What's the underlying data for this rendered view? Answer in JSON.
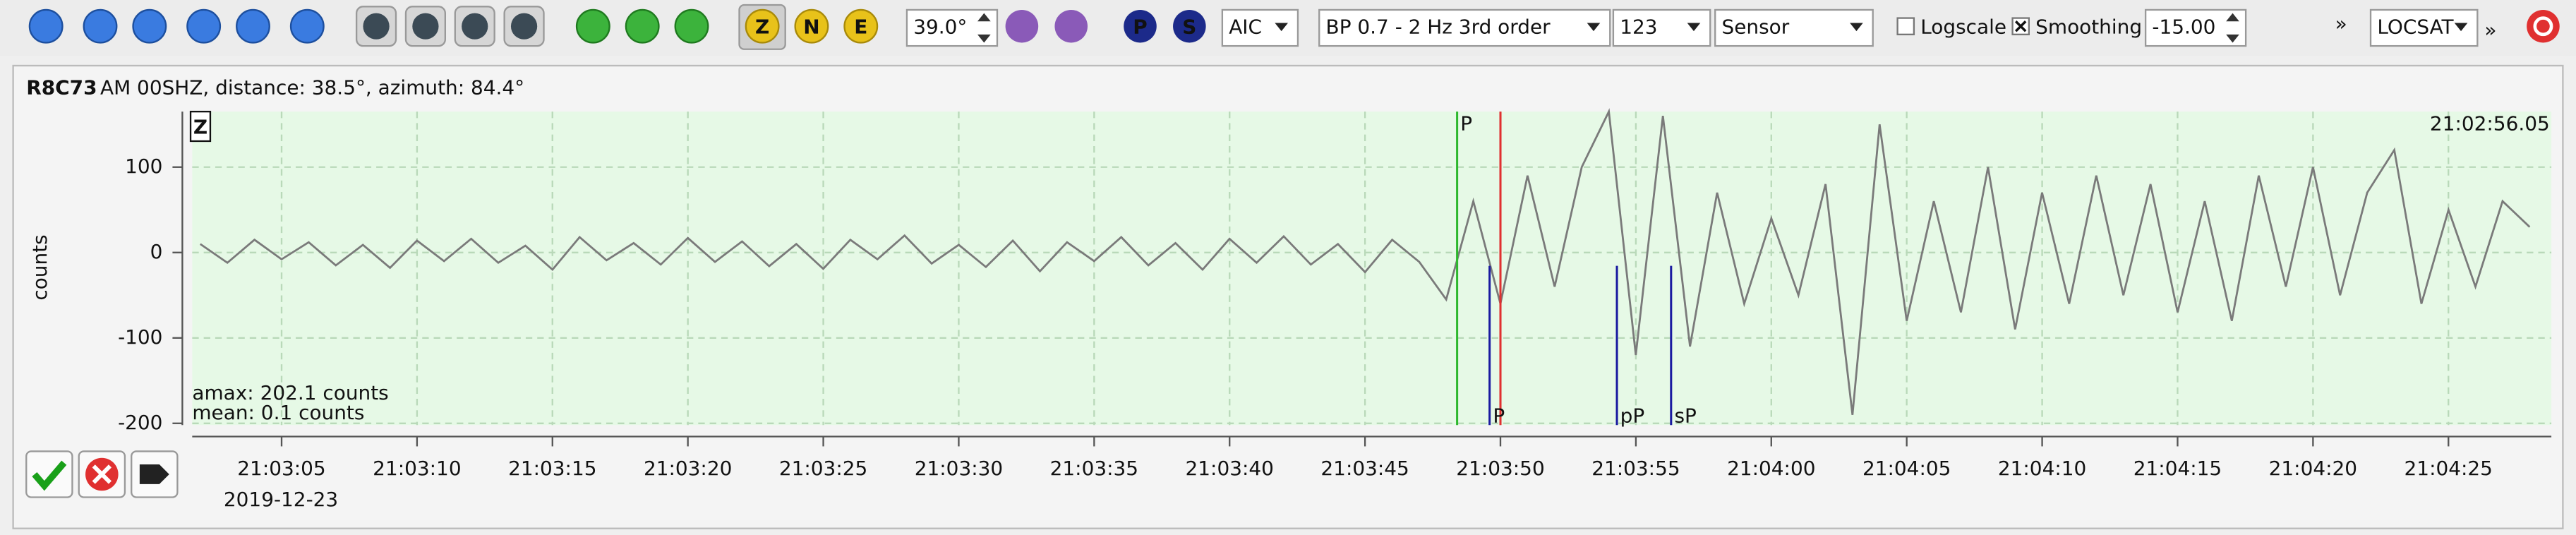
{
  "toolbar": {
    "threshold": "39.0°",
    "picker": "AIC",
    "filter": "BP 0.7 - 2 Hz  3rd order",
    "stream": "123",
    "unit": "Sensor",
    "logscale": "Logscale",
    "smoothing": "Smoothing",
    "smoothing_value": "-15.00",
    "more_1": "»",
    "locator": "LOCSAT",
    "more_2": "»",
    "components": [
      "Z",
      "N",
      "E"
    ],
    "phases": [
      "P",
      "S"
    ]
  },
  "trace": {
    "station": "R8C73",
    "info": "AM  00SHZ, distance: 38.5°, azimuth: 84.4°"
  },
  "chart_data": {
    "type": "line",
    "component": "Z",
    "ylabel": "counts",
    "start_time": "21:02:56.05",
    "date": "2019-12-23",
    "amax": "amax: 202.1 counts",
    "mean": "mean: 0.1 counts",
    "color": "#7a7a7a",
    "grid": true,
    "x": [
      "21:03:02",
      "21:03:03",
      "21:03:04",
      "21:03:05",
      "21:03:06",
      "21:03:07",
      "21:03:08",
      "21:03:09",
      "21:03:10",
      "21:03:11",
      "21:03:12",
      "21:03:13",
      "21:03:14",
      "21:03:15",
      "21:03:16",
      "21:03:17",
      "21:03:18",
      "21:03:19",
      "21:03:20",
      "21:03:21",
      "21:03:22",
      "21:03:23",
      "21:03:24",
      "21:03:25",
      "21:03:26",
      "21:03:27",
      "21:03:28",
      "21:03:29",
      "21:03:30",
      "21:03:31",
      "21:03:32",
      "21:03:33",
      "21:03:34",
      "21:03:35",
      "21:03:36",
      "21:03:37",
      "21:03:38",
      "21:03:39",
      "21:03:40",
      "21:03:41",
      "21:03:42",
      "21:03:43",
      "21:03:44",
      "21:03:45",
      "21:03:46",
      "21:03:47",
      "21:03:48",
      "21:03:49",
      "21:03:50",
      "21:03:51",
      "21:03:52",
      "21:03:53",
      "21:03:54",
      "21:03:55",
      "21:03:56",
      "21:03:57",
      "21:03:58",
      "21:03:59",
      "21:04:00",
      "21:04:01",
      "21:04:02",
      "21:04:03",
      "21:04:04",
      "21:04:05",
      "21:04:06",
      "21:04:07",
      "21:04:08",
      "21:04:09",
      "21:04:10",
      "21:04:11",
      "21:04:12",
      "21:04:13",
      "21:04:14",
      "21:04:15",
      "21:04:16",
      "21:04:17",
      "21:04:18",
      "21:04:19",
      "21:04:20",
      "21:04:21",
      "21:04:22",
      "21:04:23",
      "21:04:24",
      "21:04:25",
      "21:04:26",
      "21:04:27",
      "21:04:28"
    ],
    "values": [
      10,
      -12,
      15,
      -8,
      12,
      -15,
      9,
      -18,
      14,
      -10,
      16,
      -12,
      8,
      -20,
      18,
      -9,
      11,
      -14,
      17,
      -11,
      13,
      -16,
      10,
      -19,
      15,
      -8,
      20,
      -13,
      9,
      -17,
      14,
      -22,
      12,
      -10,
      18,
      -15,
      11,
      -20,
      16,
      -12,
      19,
      -14,
      10,
      -23,
      15,
      -11,
      -55,
      60,
      -60,
      90,
      -40,
      100,
      165,
      -120,
      160,
      -110,
      70,
      -60,
      40,
      -50,
      80,
      -190,
      150,
      -80,
      60,
      -70,
      100,
      -90,
      70,
      -60,
      90,
      -50,
      80,
      -70,
      60,
      -80,
      90,
      -40,
      100,
      -50,
      70,
      120,
      -60,
      50,
      -40,
      60,
      30
    ],
    "xlim": [
      "21:03:01.7",
      "21:04:28.8"
    ],
    "ylim": [
      -202,
      165
    ],
    "xticks": [
      "21:03:05",
      "21:03:10",
      "21:03:15",
      "21:03:20",
      "21:03:25",
      "21:03:30",
      "21:03:35",
      "21:03:40",
      "21:03:45",
      "21:03:50",
      "21:03:55",
      "21:04:00",
      "21:04:05",
      "21:04:10",
      "21:04:15",
      "21:04:20",
      "21:04:25"
    ],
    "yticks": [
      -200,
      -100,
      0,
      100
    ],
    "picks": [
      {
        "label": "P",
        "time": "21:03:48.4",
        "color": "#2db82d",
        "position": "top"
      },
      {
        "label": null,
        "time": "21:03:50.0",
        "color": "#e03030",
        "position": "top"
      },
      {
        "label": "P",
        "time": "21:03:49.6",
        "color": "#1a1aa0",
        "position": "bottom"
      },
      {
        "label": "pP",
        "time": "21:03:54.3",
        "color": "#1a1aa0",
        "position": "bottom"
      },
      {
        "label": "sP",
        "time": "21:03:56.3",
        "color": "#1a1aa0",
        "position": "bottom"
      }
    ]
  }
}
